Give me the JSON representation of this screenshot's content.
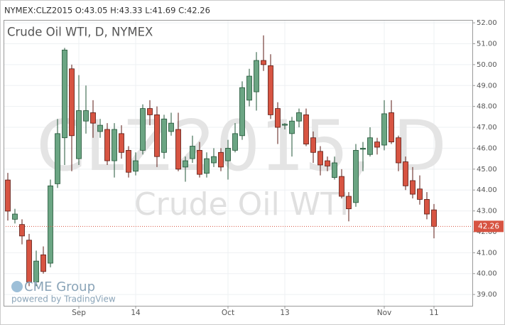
{
  "header": "NYMEX:CLZ2015 O:43.05 H:43.33 L:41.69 C:42.26",
  "chart_data": {
    "type": "candlestick",
    "title": "Crude Oil WTI, D, NYMEX",
    "watermark": [
      "CLZ2015, D",
      "Crude Oil WTI"
    ],
    "logo": "CME Group",
    "credit": "powered by TradingView",
    "categories": [
      null,
      null,
      null,
      null,
      null,
      null,
      null,
      null,
      null,
      null,
      "Sep",
      null,
      null,
      null,
      null,
      null,
      null,
      null,
      "14",
      null,
      null,
      null,
      null,
      null,
      null,
      null,
      null,
      null,
      null,
      null,
      null,
      "Oct",
      null,
      null,
      null,
      null,
      null,
      null,
      null,
      "13",
      null,
      null,
      null,
      null,
      null,
      null,
      null,
      null,
      null,
      null,
      null,
      null,
      null,
      "Nov",
      null,
      null,
      null,
      null,
      null,
      null,
      "11"
    ],
    "open": [
      44.48,
      42.6,
      42.35,
      41.6,
      39.6,
      40.9,
      40.5,
      44.3,
      46.5,
      49.8,
      45.5,
      47.3,
      47.7,
      46.8,
      46.9,
      45.4,
      46.7,
      45.9,
      44.9,
      45.9,
      47.9,
      47.6,
      45.8,
      46.8,
      46.9,
      45.1,
      45.5,
      45.9,
      44.8,
      45.3,
      45.8,
      45.4,
      45.9,
      46.6,
      48.3,
      48.7,
      50.2,
      49.95,
      47.9,
      47.1,
      46.7,
      47.3,
      47.6,
      46.5,
      45.85,
      45.4,
      44.6,
      44.65,
      43.7,
      43.4,
      45.95,
      45.7,
      46.3,
      46.15,
      47.7,
      46.5,
      45.35,
      44.45,
      44.05,
      43.55,
      43.05
    ],
    "high": [
      44.82,
      43.1,
      42.6,
      41.9,
      41.1,
      41.3,
      44.5,
      47.4,
      50.8,
      50.0,
      49.5,
      49.0,
      48.3,
      47.4,
      47.2,
      47.2,
      47.1,
      46.1,
      45.8,
      48.1,
      48.3,
      48.0,
      47.6,
      47.7,
      47.7,
      45.6,
      46.6,
      46.3,
      45.8,
      46.0,
      46.0,
      46.4,
      47.2,
      49.2,
      49.8,
      50.6,
      51.4,
      50.5,
      48.2,
      47.2,
      47.5,
      47.9,
      47.9,
      46.8,
      46.1,
      45.6,
      45.6,
      45.0,
      43.9,
      46.2,
      46.3,
      47.0,
      46.5,
      48.3,
      48.3,
      46.6,
      45.6,
      45.1,
      44.7,
      43.9,
      43.33
    ],
    "low": [
      42.54,
      42.4,
      41.4,
      39.4,
      39.4,
      40.0,
      40.3,
      44.1,
      45.2,
      44.9,
      45.2,
      46.7,
      46.5,
      46.5,
      45.2,
      44.6,
      45.5,
      44.6,
      44.7,
      45.7,
      47.1,
      45.1,
      45.5,
      46.6,
      44.9,
      44.4,
      45.3,
      44.6,
      44.6,
      45.1,
      44.9,
      44.5,
      45.8,
      46.4,
      48.0,
      47.8,
      49.7,
      47.4,
      46.2,
      46.9,
      45.6,
      47.0,
      46.1,
      45.3,
      44.7,
      44.9,
      44.5,
      43.6,
      42.5,
      43.2,
      44.9,
      45.6,
      45.7,
      45.9,
      46.2,
      44.9,
      44.0,
      43.6,
      43.3,
      42.6,
      41.69
    ],
    "close": [
      42.99,
      42.85,
      41.8,
      39.6,
      40.6,
      40.1,
      44.2,
      46.7,
      50.7,
      46.6,
      47.8,
      47.8,
      47.2,
      47.1,
      45.4,
      46.9,
      45.8,
      44.85,
      45.4,
      47.9,
      47.6,
      45.6,
      47.4,
      47.2,
      45.0,
      45.4,
      46.1,
      44.75,
      45.5,
      45.6,
      45.1,
      46.0,
      46.7,
      48.9,
      49.45,
      50.2,
      50.0,
      47.6,
      47.0,
      47.15,
      47.3,
      47.7,
      46.2,
      45.8,
      45.2,
      45.15,
      45.3,
      43.7,
      43.1,
      45.9,
      46.0,
      46.5,
      46.05,
      47.65,
      46.3,
      45.3,
      44.2,
      43.8,
      43.55,
      42.85,
      42.26
    ],
    "up_color": "#6ba583",
    "down_color": "#d75442",
    "last_price": 42.26,
    "ylim": [
      38.46,
      52.14
    ],
    "yticks": [
      {
        "value": 39,
        "label": "39.00"
      },
      {
        "value": 40,
        "label": "40.00"
      },
      {
        "value": 41,
        "label": "41.00"
      },
      {
        "value": 42,
        "label": "42.00"
      },
      {
        "value": 43,
        "label": "43.00"
      },
      {
        "value": 44,
        "label": "44.00"
      },
      {
        "value": 45,
        "label": "45.00"
      },
      {
        "value": 46,
        "label": "46.00"
      },
      {
        "value": 47,
        "label": "47.00"
      },
      {
        "value": 48,
        "label": "48.00"
      },
      {
        "value": 49,
        "label": "49.00"
      },
      {
        "value": 50,
        "label": "50.00"
      },
      {
        "value": 51,
        "label": "51.00"
      },
      {
        "value": 52,
        "label": "52.00"
      }
    ],
    "grid": true
  }
}
